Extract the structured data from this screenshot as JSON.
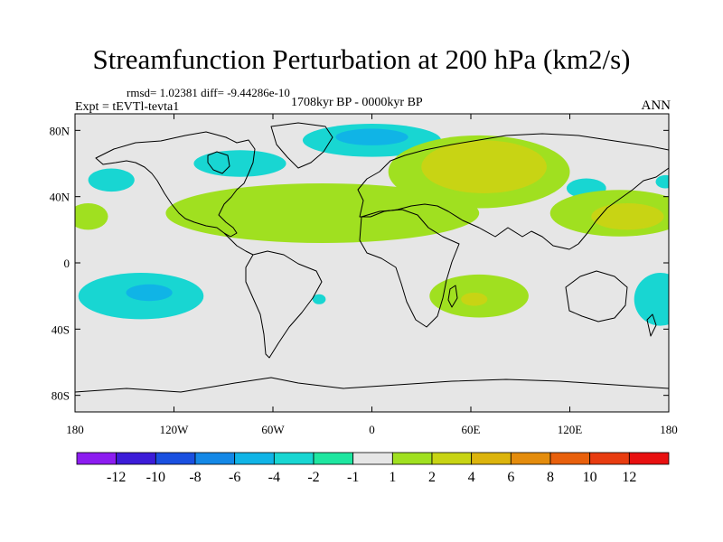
{
  "chart_data": {
    "type": "heatmap",
    "title": "Streamfunction Perturbation at 200 hPa (km2/s)",
    "stats_text": "rmsd= 1.02381 diff= -9.44286e-10",
    "experiment_text": "Expt = tEVTl-tevta1",
    "period_text": "1708kyr BP - 0000kyr BP",
    "season_text": "ANN",
    "x_range": [
      -180,
      180
    ],
    "y_range": [
      -90,
      90
    ],
    "x_ticks": [
      {
        "value": -180,
        "label": "180"
      },
      {
        "value": -120,
        "label": "120W"
      },
      {
        "value": -60,
        "label": "60W"
      },
      {
        "value": 0,
        "label": "0"
      },
      {
        "value": 60,
        "label": "60E"
      },
      {
        "value": 120,
        "label": "120E"
      },
      {
        "value": 180,
        "label": "180"
      }
    ],
    "y_ticks": [
      {
        "value": 80,
        "label": "80N"
      },
      {
        "value": 40,
        "label": "40N"
      },
      {
        "value": 0,
        "label": "0"
      },
      {
        "value": -40,
        "label": "40S"
      },
      {
        "value": -80,
        "label": "80S"
      }
    ],
    "colorbar": {
      "levels": [
        "-12",
        "-10",
        "-8",
        "-6",
        "-4",
        "-2",
        "-1",
        "1",
        "2",
        "4",
        "6",
        "8",
        "10",
        "12"
      ],
      "colors": [
        "#8c1cf0",
        "#3c1cd8",
        "#1a50e0",
        "#1488e6",
        "#10b4e6",
        "#18d6d2",
        "#1ee6a0",
        "#e6e6e6",
        "#a0e020",
        "#c8d414",
        "#dcb40c",
        "#e48c0c",
        "#e8600c",
        "#e83c10",
        "#e81010"
      ]
    },
    "anomalies": [
      {
        "name": "north-atlantic-low",
        "level": "-2",
        "lon": -35,
        "lat": 27,
        "rlon": 62,
        "rlat": 12
      },
      {
        "name": "north-atlantic-low-core",
        "level": "-4",
        "lon": -38,
        "lat": 26,
        "rlon": 38,
        "rlat": 7
      },
      {
        "name": "arctic-low",
        "level": "-2",
        "lon": 0,
        "lat": 74,
        "rlon": 42,
        "rlat": 10
      },
      {
        "name": "arctic-low-core",
        "level": "-4",
        "lon": 0,
        "lat": 76,
        "rlon": 22,
        "rlat": 5
      },
      {
        "name": "north-america-low",
        "level": "-2",
        "lon": -80,
        "lat": 60,
        "rlon": 28,
        "rlat": 8
      },
      {
        "name": "north-pacific-low",
        "level": "-2",
        "lon": -158,
        "lat": 50,
        "rlon": 14,
        "rlat": 7
      },
      {
        "name": "west-pacific-edge-low",
        "level": "-2",
        "lon": 178,
        "lat": 49,
        "rlon": 6,
        "rlat": 4
      },
      {
        "name": "south-pacific-low",
        "level": "-2",
        "lon": -140,
        "lat": -20,
        "rlon": 38,
        "rlat": 14
      },
      {
        "name": "south-pacific-low-core",
        "level": "-4",
        "lon": -135,
        "lat": -18,
        "rlon": 14,
        "rlat": 5
      },
      {
        "name": "southwest-pacific-low",
        "level": "-2",
        "lon": 175,
        "lat": -22,
        "rlon": 16,
        "rlat": 16
      },
      {
        "name": "south-atlantic-low",
        "level": "-2",
        "lon": -32,
        "lat": -22,
        "rlon": 4,
        "rlat": 3
      },
      {
        "name": "central-asia-low",
        "level": "-2",
        "lon": 130,
        "lat": 45,
        "rlon": 12,
        "rlat": 6
      },
      {
        "name": "atlantic-high",
        "level": "1",
        "lon": -30,
        "lat": 30,
        "rlon": 95,
        "rlat": 18
      },
      {
        "name": "eastern-pacific-high",
        "level": "1",
        "lon": -172,
        "lat": 28,
        "rlon": 12,
        "rlat": 8
      },
      {
        "name": "eurasia-high",
        "level": "1",
        "lon": 65,
        "lat": 55,
        "rlon": 55,
        "rlat": 22
      },
      {
        "name": "eurasia-high-core",
        "level": "2",
        "lon": 68,
        "lat": 58,
        "rlon": 38,
        "rlat": 16
      },
      {
        "name": "west-pacific-high",
        "level": "1",
        "lon": 150,
        "lat": 30,
        "rlon": 42,
        "rlat": 14
      },
      {
        "name": "west-pacific-high-core",
        "level": "2",
        "lon": 155,
        "lat": 28,
        "rlon": 22,
        "rlat": 8
      },
      {
        "name": "south-indian-high",
        "level": "1",
        "lon": 65,
        "lat": -20,
        "rlon": 30,
        "rlat": 13
      },
      {
        "name": "south-indian-high-core",
        "level": "2",
        "lon": 62,
        "lat": -22,
        "rlon": 8,
        "rlat": 4
      }
    ]
  }
}
